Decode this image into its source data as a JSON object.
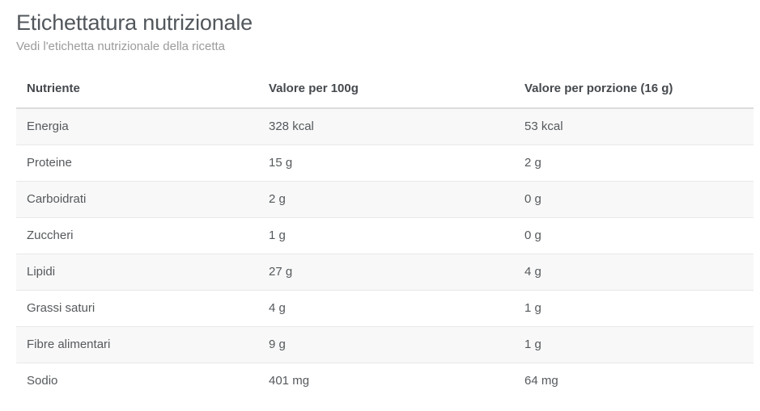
{
  "header": {
    "title": "Etichettatura nutrizionale",
    "subtitle": "Vedi l'etichetta nutrizionale della ricetta"
  },
  "table": {
    "columns": [
      "Nutriente",
      "Valore per 100g",
      "Valore per porzione (16 g)"
    ],
    "rows": [
      {
        "nutrient": "Energia",
        "per100g": "328 kcal",
        "perPortion": "53 kcal"
      },
      {
        "nutrient": "Proteine",
        "per100g": "15 g",
        "perPortion": "2 g"
      },
      {
        "nutrient": "Carboidrati",
        "per100g": "2 g",
        "perPortion": "0 g"
      },
      {
        "nutrient": "Zuccheri",
        "per100g": "1 g",
        "perPortion": "0 g"
      },
      {
        "nutrient": "Lipidi",
        "per100g": "27 g",
        "perPortion": "4 g"
      },
      {
        "nutrient": "Grassi saturi",
        "per100g": "4 g",
        "perPortion": "1 g"
      },
      {
        "nutrient": "Fibre alimentari",
        "per100g": "9 g",
        "perPortion": "1 g"
      },
      {
        "nutrient": "Sodio",
        "per100g": "401 mg",
        "perPortion": "64 mg"
      }
    ]
  },
  "colors": {
    "title_text": "#52575c",
    "subtitle_text": "#9b9b9b",
    "header_text": "#45494d",
    "cell_text": "#55595c",
    "stripe_background": "#f8f8f8",
    "row_border": "#e8e8e8",
    "header_border": "#dcdcdc",
    "page_background": "#ffffff"
  }
}
